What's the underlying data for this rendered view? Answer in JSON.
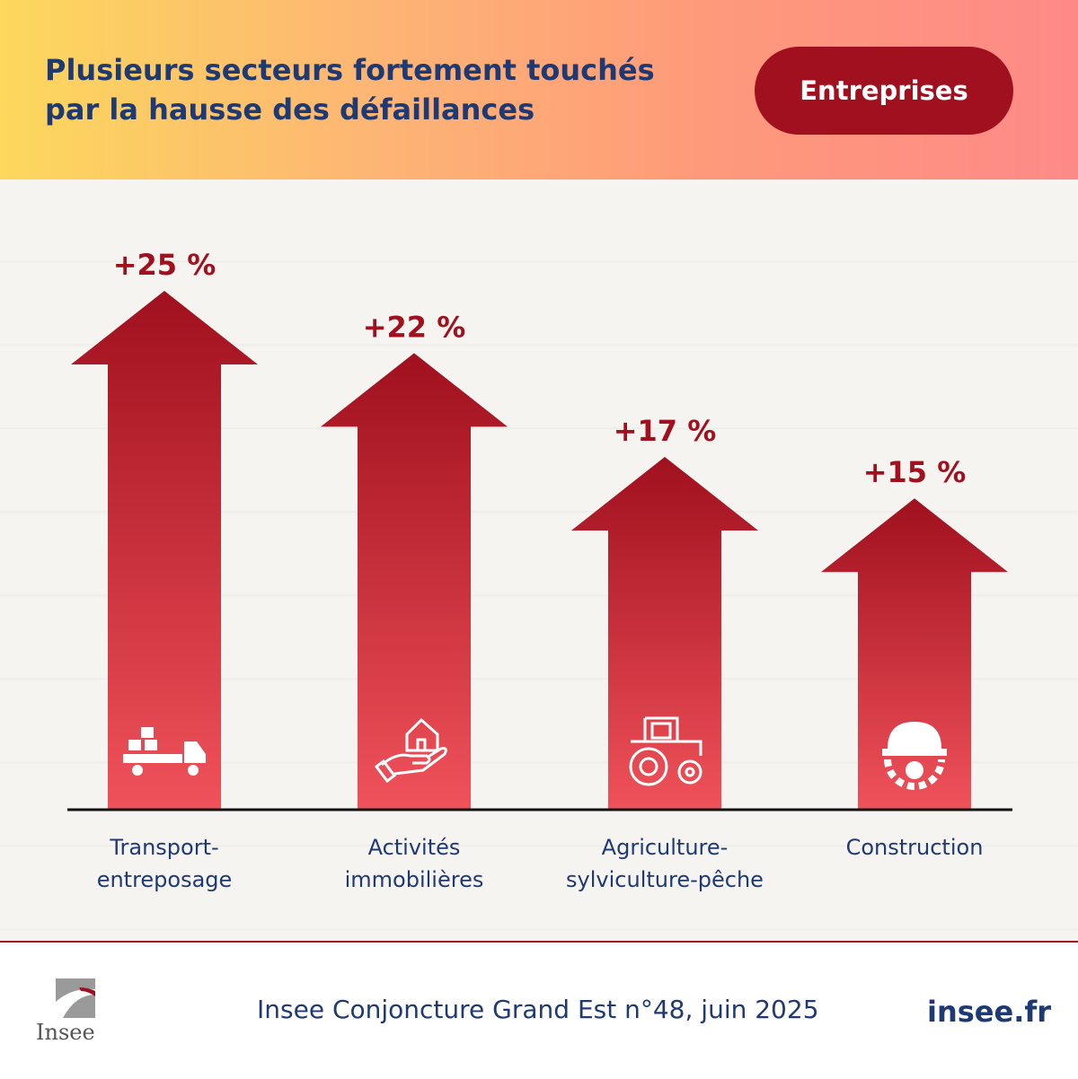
{
  "header": {
    "title_line1": "Plusieurs secteurs fortement touchés",
    "title_line2": "par la hausse des défaillances",
    "badge": "Entreprises"
  },
  "colors": {
    "arrow_dark": "#a0101e",
    "arrow_light": "#f0525a",
    "navy": "#1f3a72"
  },
  "chart_data": {
    "type": "bar",
    "categories": [
      "Transport-entreposage",
      "Activités immobilières",
      "Agriculture-sylviculture-pêche",
      "Construction"
    ],
    "category_lines": [
      [
        "Transport-",
        "entreposage"
      ],
      [
        "Activités",
        "immobilières"
      ],
      [
        "Agriculture-",
        "sylviculture-pêche"
      ],
      [
        "Construction"
      ]
    ],
    "values": [
      25,
      22,
      17,
      15
    ],
    "value_labels": [
      "+25 %",
      "+22 %",
      "+17 %",
      "+15 %"
    ],
    "icons": [
      "delivery-truck-icon",
      "house-in-hand-icon",
      "tractor-icon",
      "hard-hat-gear-icon"
    ],
    "unit": "%",
    "title": "Plusieurs secteurs fortement touchés par la hausse des défaillances",
    "xlabel": "",
    "ylabel": "",
    "grid": false
  },
  "footer": {
    "logo": "Insee",
    "source": "Insee Conjoncture Grand Est n°48, juin 2025",
    "site": "insee.fr"
  }
}
